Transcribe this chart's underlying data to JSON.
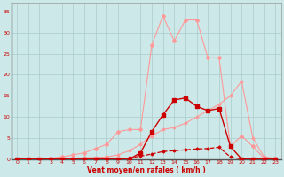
{
  "xlabel": "Vent moyen/en rafales ( km/h )",
  "xlim": [
    -0.5,
    23.5
  ],
  "ylim": [
    0,
    37
  ],
  "yticks": [
    0,
    5,
    10,
    15,
    20,
    25,
    30,
    35
  ],
  "xticks": [
    0,
    1,
    2,
    3,
    4,
    5,
    6,
    7,
    8,
    9,
    10,
    11,
    12,
    13,
    14,
    15,
    16,
    17,
    18,
    19,
    20,
    21,
    22,
    23
  ],
  "bg_color": "#cce8e8",
  "grid_color": "#aacccc",
  "series": [
    {
      "label": "rafales_light",
      "color": "#ff9999",
      "linewidth": 0.8,
      "marker": "D",
      "markersize": 2.0,
      "x": [
        0,
        1,
        2,
        3,
        4,
        5,
        6,
        7,
        8,
        9,
        10,
        11,
        12,
        13,
        14,
        15,
        16,
        17,
        18,
        19,
        20,
        21,
        22,
        23
      ],
      "y": [
        0,
        0,
        0,
        0.2,
        0.5,
        1.0,
        1.5,
        2.5,
        3.5,
        6.5,
        7.0,
        7.0,
        27.0,
        34.0,
        28.0,
        33.0,
        33.0,
        24.0,
        24.0,
        3.0,
        5.5,
        3.0,
        0.2,
        0.2
      ]
    },
    {
      "label": "linear_light",
      "color": "#ff9999",
      "linewidth": 0.8,
      "marker": "D",
      "markersize": 1.5,
      "x": [
        0,
        1,
        2,
        3,
        4,
        5,
        6,
        7,
        8,
        9,
        10,
        11,
        12,
        13,
        14,
        15,
        16,
        17,
        18,
        19,
        20,
        21,
        22,
        23
      ],
      "y": [
        0,
        0,
        0,
        0.1,
        0.1,
        0.2,
        0.3,
        0.4,
        0.5,
        1.0,
        2.0,
        3.5,
        5.5,
        7.0,
        7.5,
        8.5,
        10.0,
        11.5,
        13.0,
        15.0,
        18.5,
        5.0,
        0.5,
        0.2
      ]
    },
    {
      "label": "vent_moyen",
      "color": "#cc0000",
      "linewidth": 1.0,
      "marker": "s",
      "markersize": 2.5,
      "x": [
        0,
        1,
        2,
        3,
        4,
        5,
        6,
        7,
        8,
        9,
        10,
        11,
        12,
        13,
        14,
        15,
        16,
        17,
        18,
        19,
        20,
        21,
        22,
        23
      ],
      "y": [
        0,
        0,
        0,
        0,
        0,
        0,
        0,
        0,
        0,
        0,
        0,
        1.5,
        6.5,
        10.5,
        14.0,
        14.5,
        12.5,
        11.5,
        12.0,
        3.0,
        0,
        0,
        0,
        0
      ]
    },
    {
      "label": "dashed_low",
      "color": "#cc0000",
      "linewidth": 0.9,
      "linestyle": "--",
      "marker": "D",
      "markersize": 1.5,
      "x": [
        0,
        1,
        2,
        3,
        4,
        5,
        6,
        7,
        8,
        9,
        10,
        11,
        12,
        13,
        14,
        15,
        16,
        17,
        18,
        19,
        20,
        21,
        22,
        23
      ],
      "y": [
        0,
        0,
        0,
        0,
        0,
        0,
        0,
        0,
        0,
        0,
        0.3,
        0.7,
        1.2,
        1.8,
        2.0,
        2.2,
        2.4,
        2.5,
        2.8,
        0.5,
        0,
        0,
        0,
        0
      ]
    }
  ],
  "arrow_color": "#cc0000",
  "tick_fontsize": 4.5,
  "xlabel_fontsize": 5.5
}
